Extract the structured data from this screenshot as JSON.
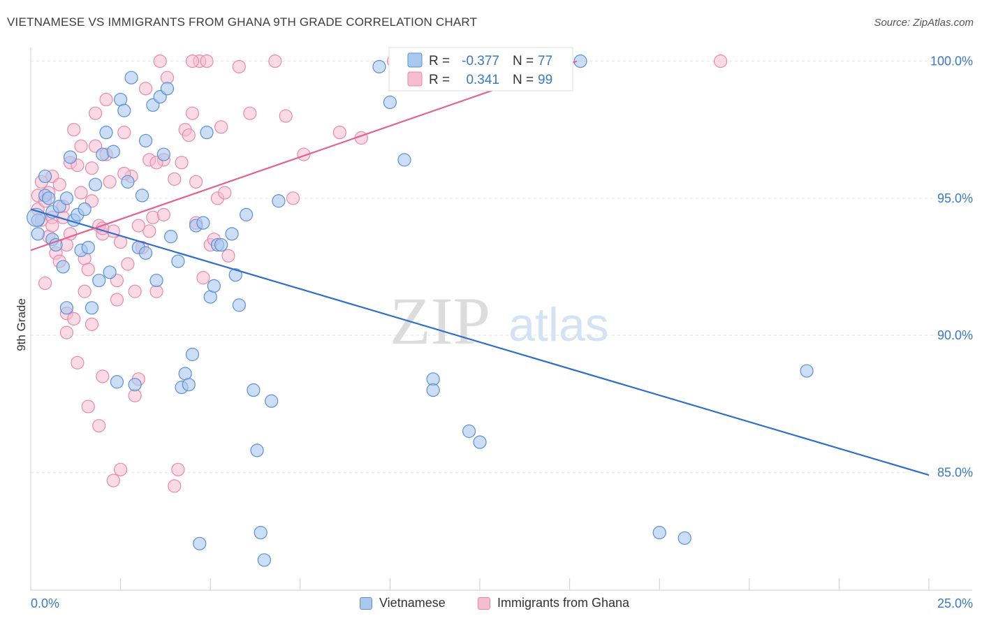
{
  "header": {
    "title": "VIETNAMESE VS IMMIGRANTS FROM GHANA 9TH GRADE CORRELATION CHART",
    "source": "Source: ZipAtlas.com"
  },
  "watermark": {
    "zip": "ZIP",
    "atlas": "atlas"
  },
  "colors": {
    "blue_fill": "#a9c8ef",
    "blue_stroke": "#5b8fd6",
    "blue_line": "#2e6fcc",
    "pink_fill": "#f6bcd0",
    "pink_stroke": "#e889a8",
    "pink_line": "#e0648e",
    "axis_text": "#3b78c3",
    "grid": "#e3e3e3"
  },
  "legend": {
    "r_label": "R =",
    "n_label": "N =",
    "items": [
      {
        "r": "-0.377",
        "n": "77"
      },
      {
        "r": "0.341",
        "n": "99"
      }
    ]
  },
  "chart_data": {
    "type": "scatter",
    "title": "VIETNAMESE VS IMMIGRANTS FROM GHANA 9TH GRADE CORRELATION CHART",
    "xlabel": "",
    "ylabel": "9th Grade",
    "xlim": [
      0,
      25
    ],
    "ylim": [
      80.7,
      100.5
    ],
    "x_tick_labels": [
      "0.0%",
      "25.0%"
    ],
    "y_ticks": [
      85,
      90,
      95,
      100
    ],
    "y_tick_labels": [
      "85.0%",
      "90.0%",
      "95.0%",
      "100.0%"
    ],
    "grid": "horizontal dashed",
    "legend_position": "top-center",
    "series": [
      {
        "name": "Vietnamese",
        "color": "#a9c8ef",
        "trend": {
          "x": [
            0,
            25
          ],
          "y": [
            94.6,
            84.9
          ]
        },
        "points": [
          [
            0.2,
            94.2
          ],
          [
            0.2,
            93.7
          ],
          [
            0.4,
            95.8
          ],
          [
            0.4,
            95.1
          ],
          [
            0.5,
            95.0
          ],
          [
            0.6,
            94.5
          ],
          [
            0.6,
            93.5
          ],
          [
            0.7,
            93.3
          ],
          [
            0.8,
            94.7
          ],
          [
            0.9,
            92.5
          ],
          [
            1.0,
            95.0
          ],
          [
            1.0,
            91.0
          ],
          [
            1.1,
            96.5
          ],
          [
            1.2,
            94.2
          ],
          [
            1.3,
            94.4
          ],
          [
            1.4,
            93.1
          ],
          [
            1.5,
            94.6
          ],
          [
            1.6,
            93.2
          ],
          [
            1.7,
            91.0
          ],
          [
            1.8,
            95.5
          ],
          [
            1.9,
            92.0
          ],
          [
            2.0,
            96.6
          ],
          [
            2.1,
            97.4
          ],
          [
            2.2,
            92.3
          ],
          [
            2.3,
            96.7
          ],
          [
            2.4,
            88.3
          ],
          [
            2.5,
            98.6
          ],
          [
            2.6,
            98.2
          ],
          [
            2.7,
            95.6
          ],
          [
            2.8,
            99.4
          ],
          [
            2.9,
            88.2
          ],
          [
            3.0,
            93.2
          ],
          [
            3.1,
            95.1
          ],
          [
            3.2,
            93.0
          ],
          [
            3.2,
            97.1
          ],
          [
            3.4,
            98.4
          ],
          [
            3.5,
            92.0
          ],
          [
            3.6,
            98.7
          ],
          [
            3.7,
            96.6
          ],
          [
            3.8,
            99.0
          ],
          [
            3.9,
            93.6
          ],
          [
            4.1,
            92.7
          ],
          [
            4.2,
            88.1
          ],
          [
            4.3,
            88.6
          ],
          [
            4.4,
            88.2
          ],
          [
            4.5,
            89.3
          ],
          [
            4.6,
            94.0
          ],
          [
            4.7,
            82.4
          ],
          [
            4.8,
            94.1
          ],
          [
            4.9,
            97.4
          ],
          [
            5.0,
            91.4
          ],
          [
            5.1,
            91.8
          ],
          [
            5.2,
            93.3
          ],
          [
            5.3,
            93.3
          ],
          [
            5.6,
            93.7
          ],
          [
            5.7,
            92.2
          ],
          [
            5.8,
            91.1
          ],
          [
            6.0,
            94.4
          ],
          [
            6.2,
            88.0
          ],
          [
            6.3,
            85.8
          ],
          [
            6.4,
            82.8
          ],
          [
            6.5,
            81.8
          ],
          [
            6.7,
            87.6
          ],
          [
            6.9,
            94.9
          ],
          [
            9.7,
            99.8
          ],
          [
            10.0,
            98.5
          ],
          [
            10.4,
            96.4
          ],
          [
            10.9,
            100.0
          ],
          [
            11.2,
            88.4
          ],
          [
            11.2,
            88.0
          ],
          [
            12.2,
            86.5
          ],
          [
            12.5,
            86.1
          ],
          [
            15.3,
            100.0
          ],
          [
            17.5,
            82.8
          ],
          [
            18.2,
            82.6
          ],
          [
            21.6,
            88.7
          ]
        ]
      },
      {
        "name": "Immigrants from Ghana",
        "color": "#f6bcd0",
        "trend": {
          "x": [
            0,
            15.2
          ],
          "y": [
            93.1,
            100.0
          ]
        },
        "points": [
          [
            0.2,
            95.1
          ],
          [
            0.2,
            94.6
          ],
          [
            0.3,
            94.2
          ],
          [
            0.3,
            95.6
          ],
          [
            0.4,
            91.9
          ],
          [
            0.4,
            94.9
          ],
          [
            0.5,
            95.2
          ],
          [
            0.5,
            93.6
          ],
          [
            0.6,
            95.8
          ],
          [
            0.6,
            94.3
          ],
          [
            0.7,
            93.0
          ],
          [
            0.8,
            95.5
          ],
          [
            0.9,
            94.7
          ],
          [
            0.9,
            94.3
          ],
          [
            1.0,
            90.8
          ],
          [
            1.0,
            90.1
          ],
          [
            1.1,
            93.7
          ],
          [
            1.1,
            96.3
          ],
          [
            1.2,
            97.5
          ],
          [
            1.2,
            90.6
          ],
          [
            1.3,
            96.2
          ],
          [
            1.3,
            89.0
          ],
          [
            1.4,
            95.2
          ],
          [
            1.5,
            92.8
          ],
          [
            1.5,
            91.6
          ],
          [
            1.6,
            87.4
          ],
          [
            1.6,
            92.4
          ],
          [
            1.7,
            90.4
          ],
          [
            1.7,
            96.1
          ],
          [
            1.8,
            96.9
          ],
          [
            1.8,
            98.1
          ],
          [
            1.9,
            86.7
          ],
          [
            2.0,
            93.7
          ],
          [
            2.0,
            88.5
          ],
          [
            2.1,
            98.6
          ],
          [
            2.1,
            96.6
          ],
          [
            2.2,
            95.6
          ],
          [
            2.3,
            84.7
          ],
          [
            2.3,
            93.8
          ],
          [
            2.4,
            92.0
          ],
          [
            2.5,
            93.4
          ],
          [
            2.5,
            85.1
          ],
          [
            2.6,
            97.4
          ],
          [
            2.7,
            92.6
          ],
          [
            2.8,
            95.8
          ],
          [
            2.9,
            91.6
          ],
          [
            2.9,
            87.8
          ],
          [
            3.0,
            88.4
          ],
          [
            3.1,
            93.2
          ],
          [
            3.2,
            99.0
          ],
          [
            3.3,
            93.8
          ],
          [
            3.4,
            94.3
          ],
          [
            3.5,
            91.6
          ],
          [
            3.6,
            100.0
          ],
          [
            3.7,
            94.4
          ],
          [
            3.8,
            99.4
          ],
          [
            4.0,
            84.5
          ],
          [
            4.1,
            85.1
          ],
          [
            4.2,
            96.3
          ],
          [
            4.3,
            97.5
          ],
          [
            4.4,
            97.3
          ],
          [
            4.5,
            98.1
          ],
          [
            4.6,
            94.1
          ],
          [
            4.7,
            100.0
          ],
          [
            4.8,
            92.1
          ],
          [
            4.9,
            100.0
          ],
          [
            5.0,
            93.3
          ],
          [
            5.1,
            93.5
          ],
          [
            5.2,
            95.0
          ],
          [
            5.3,
            97.6
          ],
          [
            5.4,
            95.2
          ],
          [
            5.5,
            92.9
          ],
          [
            5.8,
            99.8
          ],
          [
            6.1,
            98.1
          ],
          [
            6.8,
            100.0
          ],
          [
            7.1,
            98.0
          ],
          [
            7.3,
            95.0
          ],
          [
            7.6,
            96.6
          ],
          [
            8.6,
            97.4
          ],
          [
            9.2,
            97.2
          ],
          [
            10.1,
            100.0
          ],
          [
            19.2,
            100.0
          ],
          [
            1.9,
            94.0
          ],
          [
            3.3,
            96.4
          ],
          [
            4.0,
            95.7
          ],
          [
            2.4,
            91.3
          ],
          [
            0.8,
            92.7
          ],
          [
            1.4,
            96.9
          ],
          [
            2.6,
            95.9
          ],
          [
            3.7,
            96.4
          ],
          [
            4.6,
            95.6
          ],
          [
            1.0,
            93.3
          ],
          [
            2.0,
            93.9
          ],
          [
            3.0,
            94.0
          ],
          [
            0.6,
            94.0
          ],
          [
            1.7,
            94.9
          ],
          [
            4.5,
            100.0
          ],
          [
            3.5,
            96.3
          ]
        ]
      }
    ]
  },
  "bottom_legend": {
    "items": [
      {
        "label": "Vietnamese"
      },
      {
        "label": "Immigrants from Ghana"
      }
    ]
  }
}
